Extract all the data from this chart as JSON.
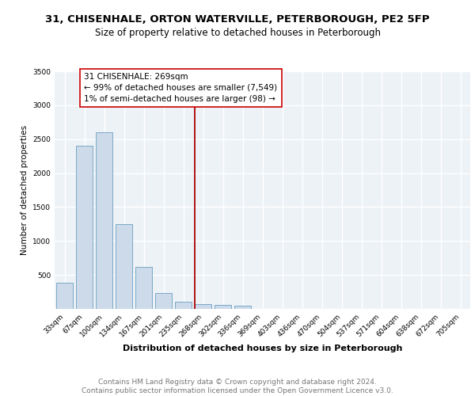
{
  "title": "31, CHISENHALE, ORTON WATERVILLE, PETERBOROUGH, PE2 5FP",
  "subtitle": "Size of property relative to detached houses in Peterborough",
  "xlabel": "Distribution of detached houses by size in Peterborough",
  "ylabel": "Number of detached properties",
  "categories": [
    "33sqm",
    "67sqm",
    "100sqm",
    "134sqm",
    "167sqm",
    "201sqm",
    "235sqm",
    "268sqm",
    "302sqm",
    "336sqm",
    "369sqm",
    "403sqm",
    "436sqm",
    "470sqm",
    "504sqm",
    "537sqm",
    "571sqm",
    "604sqm",
    "638sqm",
    "672sqm",
    "705sqm"
  ],
  "values": [
    390,
    2400,
    2600,
    1250,
    620,
    230,
    110,
    65,
    55,
    50,
    0,
    0,
    0,
    0,
    0,
    0,
    0,
    0,
    0,
    0,
    0
  ],
  "bar_color": "#ccdaea",
  "bar_edge_color": "#6b9fc0",
  "subject_line_index": 7,
  "subject_line_color": "#aa0000",
  "annotation_text": "31 CHISENHALE: 269sqm\n← 99% of detached houses are smaller (7,549)\n1% of semi-detached houses are larger (98) →",
  "annotation_box_facecolor": "#ffffff",
  "annotation_box_edgecolor": "#cc0000",
  "ylim": [
    0,
    3500
  ],
  "yticks": [
    0,
    500,
    1000,
    1500,
    2000,
    2500,
    3000,
    3500
  ],
  "footer_text": "Contains HM Land Registry data © Crown copyright and database right 2024.\nContains public sector information licensed under the Open Government Licence v3.0.",
  "plot_bg_color": "#edf2f7",
  "grid_color": "#ffffff",
  "title_fontsize": 9.5,
  "subtitle_fontsize": 8.5,
  "xlabel_fontsize": 8,
  "ylabel_fontsize": 7.5,
  "tick_fontsize": 6.5,
  "annotation_fontsize": 7.5,
  "footer_fontsize": 6.5
}
